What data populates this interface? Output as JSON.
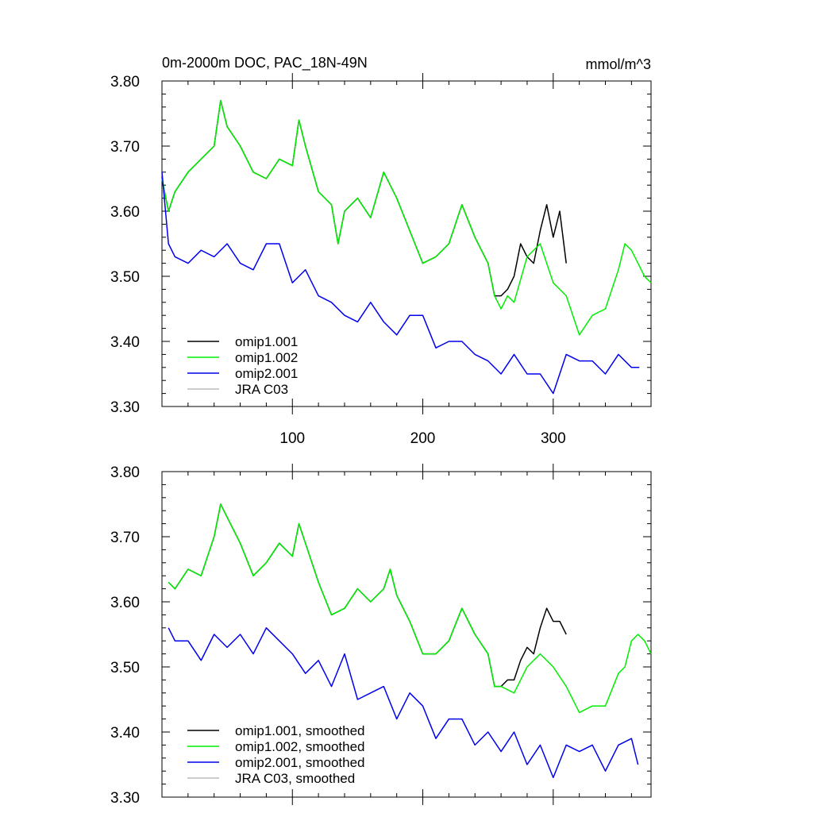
{
  "chart_data": [
    {
      "type": "line",
      "title": "0m-2000m DOC, PAC_18N-49N",
      "units": "mmol/m^3",
      "xlim": [
        0,
        375
      ],
      "ylim": [
        3.3,
        3.8
      ],
      "x_tick_labels": [
        "100",
        "200",
        "300"
      ],
      "x_ticks": [
        100,
        200,
        300
      ],
      "y_ticks": [
        "3.30",
        "3.40",
        "3.50",
        "3.60",
        "3.70",
        "3.80"
      ],
      "legend": [
        "omip1.001",
        "omip1.002",
        "omip2.001",
        "JRA C03"
      ],
      "legend_position": "bottom-left",
      "series": [
        {
          "name": "omip1.001",
          "color": "#000000",
          "x": [
            0,
            5,
            10,
            20,
            30,
            40,
            45,
            50,
            60,
            70,
            80,
            90,
            100,
            105,
            110,
            120,
            130,
            135,
            140,
            150,
            160,
            170,
            180,
            190,
            200,
            210,
            220,
            230,
            240,
            250,
            255,
            260,
            265,
            270,
            275,
            280,
            285,
            290,
            295,
            300,
            305,
            310
          ],
          "y": [
            3.65,
            3.6,
            3.63,
            3.66,
            3.68,
            3.7,
            3.77,
            3.73,
            3.7,
            3.66,
            3.65,
            3.68,
            3.67,
            3.74,
            3.7,
            3.63,
            3.61,
            3.55,
            3.6,
            3.62,
            3.59,
            3.66,
            3.62,
            3.57,
            3.52,
            3.53,
            3.55,
            3.61,
            3.56,
            3.52,
            3.47,
            3.47,
            3.48,
            3.5,
            3.55,
            3.53,
            3.52,
            3.57,
            3.61,
            3.56,
            3.6,
            3.52
          ]
        },
        {
          "name": "omip1.002",
          "color": "#00ee00",
          "x": [
            0,
            5,
            10,
            20,
            30,
            40,
            45,
            50,
            60,
            70,
            80,
            90,
            100,
            105,
            110,
            120,
            130,
            135,
            140,
            150,
            160,
            170,
            180,
            190,
            200,
            210,
            220,
            230,
            240,
            250,
            255,
            260,
            265,
            270,
            280,
            290,
            300,
            310,
            320,
            330,
            340,
            350,
            355,
            360,
            365,
            370,
            375
          ],
          "y": [
            3.65,
            3.6,
            3.63,
            3.66,
            3.68,
            3.7,
            3.77,
            3.73,
            3.7,
            3.66,
            3.65,
            3.68,
            3.67,
            3.74,
            3.7,
            3.63,
            3.61,
            3.55,
            3.6,
            3.62,
            3.59,
            3.66,
            3.62,
            3.57,
            3.52,
            3.53,
            3.55,
            3.61,
            3.56,
            3.52,
            3.47,
            3.45,
            3.47,
            3.46,
            3.53,
            3.55,
            3.49,
            3.47,
            3.41,
            3.44,
            3.45,
            3.51,
            3.55,
            3.54,
            3.52,
            3.5,
            3.49
          ]
        },
        {
          "name": "omip2.001",
          "color": "#0000ee",
          "x": [
            0,
            5,
            10,
            20,
            30,
            40,
            50,
            60,
            70,
            80,
            90,
            100,
            110,
            120,
            130,
            140,
            150,
            160,
            170,
            180,
            190,
            200,
            210,
            220,
            230,
            240,
            250,
            260,
            270,
            280,
            290,
            300,
            310,
            320,
            330,
            340,
            350,
            360,
            366
          ],
          "y": [
            3.66,
            3.55,
            3.53,
            3.52,
            3.54,
            3.53,
            3.55,
            3.52,
            3.51,
            3.55,
            3.55,
            3.49,
            3.51,
            3.47,
            3.46,
            3.44,
            3.43,
            3.46,
            3.43,
            3.41,
            3.44,
            3.44,
            3.39,
            3.4,
            3.4,
            3.38,
            3.37,
            3.35,
            3.38,
            3.35,
            3.35,
            3.32,
            3.38,
            3.37,
            3.37,
            3.35,
            3.38,
            3.36,
            3.36
          ]
        },
        {
          "name": "JRA C03",
          "color": "#bbbbbb",
          "x": [],
          "y": []
        }
      ]
    },
    {
      "type": "line",
      "title": "",
      "xlim": [
        0,
        375
      ],
      "ylim": [
        3.3,
        3.8
      ],
      "x_ticks": [
        100,
        200,
        300
      ],
      "y_ticks": [
        "3.30",
        "3.40",
        "3.50",
        "3.60",
        "3.70",
        "3.80"
      ],
      "legend": [
        "omip1.001, smoothed",
        "omip1.002, smoothed",
        "omip2.001, smoothed",
        "JRA C03, smoothed"
      ],
      "legend_position": "bottom-left",
      "series": [
        {
          "name": "omip1.001, smoothed",
          "color": "#000000",
          "x": [
            5,
            10,
            20,
            30,
            40,
            45,
            50,
            60,
            70,
            80,
            90,
            100,
            105,
            110,
            120,
            130,
            140,
            150,
            160,
            170,
            175,
            180,
            190,
            200,
            210,
            220,
            230,
            240,
            250,
            255,
            260,
            265,
            270,
            275,
            280,
            285,
            290,
            295,
            300,
            305,
            310
          ],
          "y": [
            3.63,
            3.62,
            3.65,
            3.64,
            3.7,
            3.75,
            3.73,
            3.69,
            3.64,
            3.66,
            3.69,
            3.67,
            3.72,
            3.69,
            3.63,
            3.58,
            3.59,
            3.62,
            3.6,
            3.62,
            3.65,
            3.61,
            3.57,
            3.52,
            3.52,
            3.54,
            3.59,
            3.55,
            3.52,
            3.47,
            3.47,
            3.48,
            3.48,
            3.51,
            3.53,
            3.52,
            3.56,
            3.59,
            3.57,
            3.57,
            3.55
          ]
        },
        {
          "name": "omip1.002, smoothed",
          "color": "#00ee00",
          "x": [
            5,
            10,
            20,
            30,
            40,
            45,
            50,
            60,
            70,
            80,
            90,
            100,
            105,
            110,
            120,
            130,
            140,
            150,
            160,
            170,
            175,
            180,
            190,
            200,
            210,
            220,
            230,
            240,
            250,
            255,
            260,
            270,
            280,
            290,
            300,
            310,
            320,
            330,
            340,
            350,
            355,
            360,
            365,
            370,
            375
          ],
          "y": [
            3.63,
            3.62,
            3.65,
            3.64,
            3.7,
            3.75,
            3.73,
            3.69,
            3.64,
            3.66,
            3.69,
            3.67,
            3.72,
            3.69,
            3.63,
            3.58,
            3.59,
            3.62,
            3.6,
            3.62,
            3.65,
            3.61,
            3.57,
            3.52,
            3.52,
            3.54,
            3.59,
            3.55,
            3.52,
            3.47,
            3.47,
            3.46,
            3.5,
            3.52,
            3.5,
            3.47,
            3.43,
            3.44,
            3.44,
            3.49,
            3.5,
            3.54,
            3.55,
            3.54,
            3.52
          ]
        },
        {
          "name": "omip2.001, smoothed",
          "color": "#0000ee",
          "x": [
            5,
            10,
            20,
            30,
            40,
            50,
            60,
            70,
            80,
            90,
            100,
            110,
            120,
            130,
            140,
            150,
            160,
            170,
            180,
            190,
            200,
            210,
            220,
            230,
            240,
            250,
            260,
            270,
            280,
            290,
            300,
            310,
            320,
            330,
            340,
            350,
            360,
            365
          ],
          "y": [
            3.56,
            3.54,
            3.54,
            3.51,
            3.55,
            3.53,
            3.55,
            3.52,
            3.56,
            3.54,
            3.52,
            3.49,
            3.51,
            3.47,
            3.52,
            3.45,
            3.46,
            3.47,
            3.42,
            3.46,
            3.44,
            3.39,
            3.42,
            3.42,
            3.38,
            3.4,
            3.37,
            3.4,
            3.35,
            3.38,
            3.33,
            3.38,
            3.37,
            3.38,
            3.34,
            3.38,
            3.39,
            3.35
          ]
        },
        {
          "name": "JRA C03, smoothed",
          "color": "#bbbbbb",
          "x": [],
          "y": []
        }
      ]
    }
  ]
}
